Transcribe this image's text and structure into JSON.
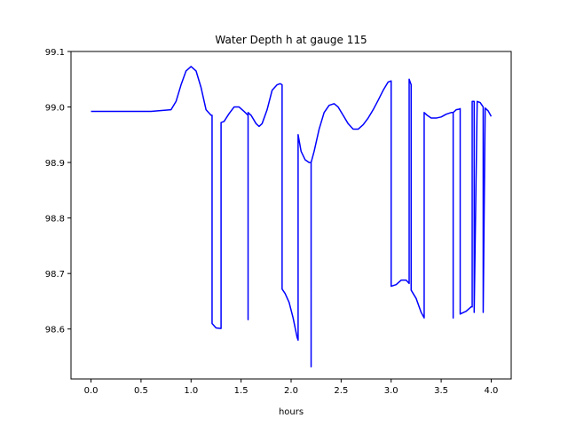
{
  "chart_data": {
    "type": "line",
    "title": "Water Depth h at gauge 115",
    "xlabel": "hours",
    "ylabel": "",
    "xlim": [
      -0.2,
      4.2
    ],
    "ylim": [
      98.51,
      99.1
    ],
    "xticks": [
      0.0,
      0.5,
      1.0,
      1.5,
      2.0,
      2.5,
      3.0,
      3.5,
      4.0
    ],
    "xtick_labels": [
      "0.0",
      "0.5",
      "1.0",
      "1.5",
      "2.0",
      "2.5",
      "3.0",
      "3.5",
      "4.0"
    ],
    "yticks": [
      98.6,
      98.7,
      98.8,
      98.9,
      99.0,
      99.1
    ],
    "ytick_labels": [
      "98.6",
      "98.7",
      "98.8",
      "98.9",
      "99.0",
      "99.1"
    ],
    "grid": false,
    "legend": "none",
    "color": "#0000ff",
    "series": [
      {
        "x": [
          0.0,
          0.3,
          0.6,
          0.8,
          0.85,
          0.9,
          0.95,
          1.0,
          1.05,
          1.1,
          1.15,
          1.2,
          1.21,
          1.21,
          1.25,
          1.3,
          1.3,
          1.33,
          1.38,
          1.43,
          1.48,
          1.53,
          1.57,
          1.57,
          1.57,
          1.57,
          1.6,
          1.65,
          1.68,
          1.71,
          1.76,
          1.81,
          1.86,
          1.89,
          1.91,
          1.91,
          1.94,
          1.98,
          2.02,
          2.06,
          2.07,
          2.07,
          2.1,
          2.14,
          2.18,
          2.2,
          2.2,
          2.2,
          2.23,
          2.28,
          2.33,
          2.38,
          2.43,
          2.47,
          2.52,
          2.57,
          2.62,
          2.67,
          2.72,
          2.77,
          2.82,
          2.87,
          2.92,
          2.97,
          3.0,
          3.0,
          3.05,
          3.1,
          3.15,
          3.18,
          3.18,
          3.2,
          3.2,
          3.25,
          3.3,
          3.33,
          3.33,
          3.36,
          3.4,
          3.45,
          3.5,
          3.55,
          3.6,
          3.62,
          3.62,
          3.62,
          3.65,
          3.68,
          3.69,
          3.69,
          3.75,
          3.8,
          3.81,
          3.81,
          3.83,
          3.83,
          3.86,
          3.89,
          3.92,
          3.92,
          3.92,
          3.94,
          3.97,
          4.0
        ],
        "y": [
          98.992,
          98.992,
          98.992,
          98.995,
          99.01,
          99.04,
          99.065,
          99.073,
          99.065,
          99.035,
          98.995,
          98.985,
          98.985,
          98.61,
          98.602,
          98.601,
          98.972,
          98.974,
          98.988,
          99.0,
          99.0,
          98.992,
          98.985,
          98.617,
          98.617,
          98.99,
          98.985,
          98.97,
          98.965,
          98.97,
          98.995,
          99.03,
          99.04,
          99.042,
          99.04,
          98.672,
          98.664,
          98.648,
          98.62,
          98.585,
          98.58,
          98.95,
          98.92,
          98.905,
          98.9,
          98.9,
          98.532,
          98.9,
          98.92,
          98.96,
          98.99,
          99.003,
          99.006,
          99.0,
          98.985,
          98.97,
          98.96,
          98.96,
          98.968,
          98.98,
          98.995,
          99.012,
          99.03,
          99.045,
          99.047,
          98.677,
          98.68,
          98.688,
          98.688,
          98.682,
          99.05,
          99.04,
          98.67,
          98.655,
          98.63,
          98.62,
          98.99,
          98.985,
          98.98,
          98.98,
          98.982,
          98.987,
          98.99,
          98.99,
          98.62,
          98.99,
          98.995,
          98.996,
          98.997,
          98.627,
          98.632,
          98.64,
          98.64,
          99.01,
          99.01,
          98.63,
          99.01,
          99.008,
          99.0,
          99.0,
          98.63,
          98.998,
          98.993,
          98.983
        ]
      }
    ]
  }
}
